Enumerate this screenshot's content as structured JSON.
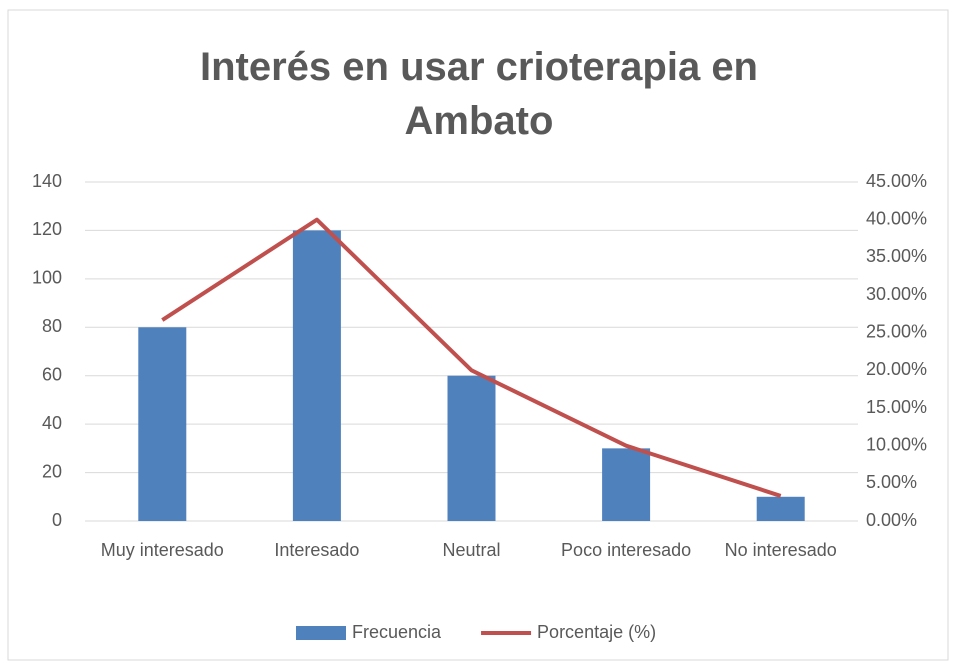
{
  "chart_data": {
    "type": "bar",
    "title": "Interés en usar crioterapia en Ambato",
    "categories": [
      "Muy interesado",
      "Interesado",
      "Neutral",
      "Poco interesado",
      "No interesado"
    ],
    "series": [
      {
        "name": "Frecuencia",
        "type": "bar",
        "color": "#4f81bd",
        "values": [
          80,
          120,
          60,
          30,
          10
        ]
      },
      {
        "name": "Porcentaje (%)",
        "type": "line",
        "axis": "y2",
        "color": "#c0504d",
        "values": [
          26.67,
          40,
          20,
          10,
          3.33
        ]
      }
    ],
    "ylim": [
      0,
      140
    ],
    "yticks": [
      0,
      20,
      40,
      60,
      80,
      100,
      120,
      140
    ],
    "y2lim": [
      0,
      45
    ],
    "y2ticks": [
      {
        "value": 0,
        "label": "0.00%"
      },
      {
        "value": 5,
        "label": "5.00%"
      },
      {
        "value": 10,
        "label": "10.00%"
      },
      {
        "value": 15,
        "label": "15.00%"
      },
      {
        "value": 20,
        "label": "20.00%"
      },
      {
        "value": 25,
        "label": "25.00%"
      },
      {
        "value": 30,
        "label": "30.00%"
      },
      {
        "value": 35,
        "label": "35.00%"
      },
      {
        "value": 40,
        "label": "40.00%"
      },
      {
        "value": 45,
        "label": "45.00%"
      }
    ],
    "grid": true,
    "legend": "bottom"
  }
}
